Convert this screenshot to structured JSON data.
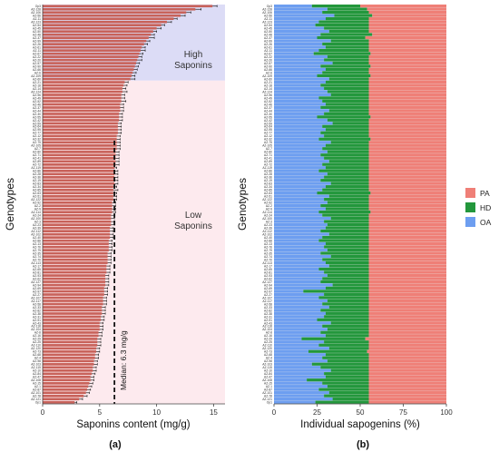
{
  "figure": {
    "panel_a_caption": "(a)",
    "panel_b_caption": "(b)"
  },
  "colors": {
    "bar": "#c8625a",
    "error": "#222222",
    "high_band": "#dcdcf6",
    "low_band": "#fdeaee",
    "pa": "#ef7f77",
    "hd": "#23973c",
    "oa": "#6d9ef0"
  },
  "chart_data": [
    {
      "type": "bar",
      "orientation": "horizontal",
      "xlabel": "Saponins content (mg/g)",
      "ylabel": "Genotypes",
      "xlim": [
        0,
        16
      ],
      "xticks": [
        0,
        5,
        10,
        15
      ],
      "median": 6.3,
      "median_label": "Median: 6.3 mg/g",
      "regions": [
        {
          "label": "High\nSaponins",
          "from_rank": 1,
          "to_rank": 24
        },
        {
          "label": "Low\nSaponins",
          "from_rank": 25,
          "to_rank": 126
        }
      ],
      "categories": [
        "Op3",
        "AZ-128",
        "AZ-106",
        "AZ-56",
        "AZ-11",
        "AZ-123",
        "AZ-54",
        "AZ-45",
        "AZ-50",
        "AZ-48",
        "AZ-37",
        "AZ-99",
        "AZ-26",
        "AZ-61",
        "AZ-11",
        "AZ-67",
        "AZ-22",
        "AZ-20",
        "AZ-57",
        "AZ-90",
        "AZ-66",
        "AZ-6",
        "AZ-109",
        "AZ-60",
        "AZ-21",
        "AZ-18",
        "AZ-14",
        "AZ-124",
        "AZ-96",
        "AZ-49",
        "AZ-52",
        "AZ-46",
        "AZ-37",
        "AZ-44",
        "AZ-30",
        "AZ-55",
        "AZ-42",
        "AZ-59",
        "AZ-64",
        "AZ-95",
        "AZ-77",
        "AZ-12",
        "AZ-32",
        "AZ-75",
        "AZ-105",
        "AZ-7",
        "AZ-80",
        "AZ-71",
        "AZ-41",
        "AZ-89",
        "AZ-72",
        "AZ-119",
        "AZ-86",
        "AZ-28",
        "AZ-36",
        "AZ-19",
        "AZ-83",
        "AZ-34",
        "AZ-85",
        "AZ-63",
        "AZ-51",
        "AZ-122",
        "AZ-92",
        "AZ-2",
        "AZ-9",
        "AZ-114",
        "AZ-24",
        "AZ-100",
        "AZ-3",
        "AZ-23",
        "AZ-39",
        "AZ-112",
        "AZ-102",
        "AZ-40",
        "AZ-88",
        "AZ-13",
        "AZ-76",
        "AZ-79",
        "AZ-35",
        "AZ-74",
        "AZ-70",
        "AZ-113",
        "AZ-17",
        "AZ-65",
        "AZ-81",
        "AZ-93",
        "AZ-62",
        "AZ-127",
        "AZ-94",
        "AZ-69",
        "AZ-97",
        "AZ-27",
        "AZ-107",
        "AZ-117",
        "AZ-58",
        "AZ-33",
        "AZ-82",
        "AZ-38",
        "AZ-31",
        "AZ-91",
        "AZ-43",
        "AZ-118",
        "AZ-104",
        "AZ-8",
        "AZ-16",
        "AZ-29",
        "AZ-25",
        "AZ-110",
        "AZ-120",
        "AZ-73",
        "AZ-68",
        "AZ-4",
        "AZ-98",
        "AZ-103",
        "AZ-115",
        "AZ-10",
        "AZ-84",
        "AZ-47",
        "AZ-108",
        "AZ-15",
        "AZ-1",
        "AZ-87",
        "AZ-101",
        "AZ-78",
        "AZ-121",
        "Op1"
      ],
      "values": [
        14.9,
        13.4,
        12.6,
        12.1,
        11.5,
        10.9,
        10.4,
        10.0,
        9.7,
        9.5,
        9.3,
        9.1,
        8.9,
        8.7,
        8.6,
        8.5,
        8.4,
        8.3,
        8.2,
        8.1,
        8.0,
        7.9,
        7.8,
        7.7,
        7.2,
        7.1,
        7.0,
        7.0,
        6.9,
        6.9,
        6.9,
        6.8,
        6.8,
        6.8,
        6.7,
        6.7,
        6.7,
        6.6,
        6.6,
        6.6,
        6.6,
        6.5,
        6.5,
        6.5,
        6.5,
        6.5,
        6.4,
        6.4,
        6.4,
        6.4,
        6.4,
        6.3,
        6.3,
        6.3,
        6.3,
        6.3,
        6.3,
        6.2,
        6.2,
        6.2,
        6.2,
        6.2,
        6.1,
        6.1,
        6.1,
        6.1,
        6.0,
        6.0,
        6.0,
        6.0,
        5.9,
        5.9,
        5.9,
        5.9,
        5.8,
        5.8,
        5.8,
        5.8,
        5.7,
        5.7,
        5.7,
        5.7,
        5.6,
        5.6,
        5.6,
        5.5,
        5.5,
        5.5,
        5.5,
        5.4,
        5.4,
        5.4,
        5.3,
        5.3,
        5.3,
        5.2,
        5.2,
        5.2,
        5.1,
        5.1,
        5.0,
        5.0,
        5.0,
        4.9,
        4.9,
        4.8,
        4.8,
        4.8,
        4.7,
        4.7,
        4.6,
        4.6,
        4.5,
        4.5,
        4.4,
        4.4,
        4.3,
        4.2,
        4.2,
        4.1,
        4.0,
        3.9,
        3.8,
        3.6,
        3.2,
        2.8
      ],
      "errors": [
        0.4,
        0.5,
        0.4,
        0.4,
        0.3,
        0.4,
        0.3,
        0.4,
        0.3,
        0.3,
        0.5,
        0.3,
        0.3,
        0.3,
        0.4,
        0.3,
        0.3,
        0.4,
        0.3,
        0.3,
        0.3,
        0.3,
        0.3,
        0.4,
        0.3,
        0.3,
        0.3,
        0.4,
        0.3,
        0.3,
        0.4,
        0.3,
        0.3,
        0.3,
        0.3,
        0.3,
        0.3,
        0.3,
        0.3,
        0.3,
        0.3,
        0.3,
        0.3,
        0.3,
        0.3,
        0.3,
        0.3,
        0.3,
        0.3,
        0.3,
        0.3,
        0.2,
        0.3,
        0.3,
        0.3,
        0.3,
        0.3,
        0.3,
        0.4,
        0.3,
        0.3,
        0.3,
        0.3,
        0.3,
        0.3,
        0.3,
        0.3,
        0.3,
        0.3,
        0.3,
        0.3,
        0.3,
        0.3,
        0.3,
        0.3,
        0.3,
        0.3,
        0.3,
        0.3,
        0.3,
        0.3,
        0.3,
        0.3,
        0.3,
        0.3,
        0.3,
        0.3,
        0.3,
        0.3,
        0.3,
        0.3,
        0.3,
        0.3,
        0.3,
        0.3,
        0.3,
        0.3,
        0.3,
        0.3,
        0.3,
        0.3,
        0.3,
        0.3,
        0.3,
        0.3,
        0.3,
        0.3,
        0.3,
        0.3,
        0.3,
        0.3,
        0.3,
        0.3,
        0.3,
        0.3,
        0.3,
        0.3,
        0.3,
        0.3,
        0.3,
        0.3,
        0.3,
        0.3,
        0.3,
        0.3,
        0.2
      ]
    },
    {
      "type": "bar",
      "orientation": "horizontal",
      "stacked": true,
      "xlabel": "Individual sapogenins (%)",
      "ylabel": "Genotypes",
      "xlim": [
        0,
        100
      ],
      "xticks": [
        0,
        25,
        50,
        75,
        100
      ],
      "legend_position": "right",
      "series": [
        {
          "name": "OA",
          "values": [
            22,
            31,
            28,
            35,
            30,
            26,
            24,
            29,
            32,
            27,
            25,
            33,
            28,
            30,
            26,
            23,
            31,
            29,
            34,
            27,
            30,
            28,
            25,
            32,
            30,
            27,
            29,
            31,
            33,
            26,
            28,
            30,
            27,
            32,
            29,
            25,
            31,
            34,
            28,
            30,
            27,
            29,
            26,
            33,
            30,
            28,
            31,
            27,
            29,
            32,
            28,
            30,
            26,
            31,
            29,
            27,
            33,
            30,
            28,
            25,
            32,
            29,
            31,
            27,
            30,
            26,
            28,
            33,
            29,
            31,
            30,
            27,
            32,
            28,
            26,
            30,
            29,
            31,
            27,
            33,
            28,
            30,
            32,
            26,
            29,
            31,
            28,
            27,
            34,
            30,
            17,
            29,
            26,
            31,
            28,
            32,
            27,
            30,
            29,
            25,
            33,
            28,
            31,
            27,
            30,
            16,
            29,
            26,
            32,
            20,
            30,
            28,
            31,
            22,
            27,
            33,
            29,
            30,
            19,
            28,
            31,
            26,
            32,
            29,
            34,
            24
          ]
        },
        {
          "name": "HD",
          "values": [
            28,
            23,
            27,
            22,
            25,
            29,
            31,
            26,
            23,
            30,
            28,
            22,
            27,
            25,
            29,
            33,
            24,
            26,
            21,
            29,
            25,
            27,
            31,
            23,
            25,
            28,
            26,
            24,
            22,
            29,
            27,
            25,
            28,
            23,
            26,
            31,
            24,
            21,
            27,
            25,
            28,
            26,
            30,
            22,
            25,
            27,
            24,
            28,
            26,
            23,
            27,
            25,
            29,
            24,
            26,
            28,
            22,
            25,
            27,
            31,
            23,
            26,
            24,
            28,
            25,
            30,
            27,
            22,
            26,
            24,
            25,
            28,
            23,
            27,
            29,
            25,
            26,
            24,
            28,
            22,
            27,
            25,
            23,
            29,
            26,
            24,
            27,
            28,
            21,
            25,
            38,
            26,
            29,
            24,
            27,
            23,
            28,
            25,
            26,
            30,
            22,
            27,
            24,
            28,
            25,
            37,
            26,
            29,
            23,
            34,
            25,
            27,
            24,
            33,
            28,
            22,
            26,
            25,
            36,
            27,
            24,
            29,
            23,
            26,
            21,
            31
          ]
        },
        {
          "name": "PA",
          "values": [
            50,
            46,
            45,
            43,
            45,
            45,
            45,
            45,
            45,
            43,
            47,
            45,
            45,
            45,
            45,
            44,
            45,
            45,
            45,
            44,
            45,
            45,
            44,
            45,
            45,
            45,
            45,
            45,
            45,
            45,
            45,
            45,
            45,
            45,
            45,
            44,
            45,
            45,
            45,
            45,
            45,
            45,
            44,
            45,
            45,
            45,
            45,
            45,
            45,
            45,
            45,
            45,
            45,
            45,
            45,
            45,
            45,
            45,
            45,
            44,
            45,
            45,
            45,
            45,
            45,
            44,
            45,
            45,
            45,
            45,
            45,
            45,
            45,
            45,
            45,
            45,
            45,
            45,
            45,
            45,
            45,
            45,
            45,
            45,
            45,
            45,
            45,
            45,
            45,
            45,
            45,
            45,
            45,
            45,
            45,
            45,
            45,
            45,
            45,
            45,
            45,
            45,
            45,
            45,
            45,
            47,
            45,
            45,
            45,
            46,
            45,
            45,
            45,
            45,
            45,
            45,
            45,
            45,
            45,
            45,
            45,
            45,
            45,
            45,
            45,
            45
          ]
        }
      ]
    }
  ]
}
